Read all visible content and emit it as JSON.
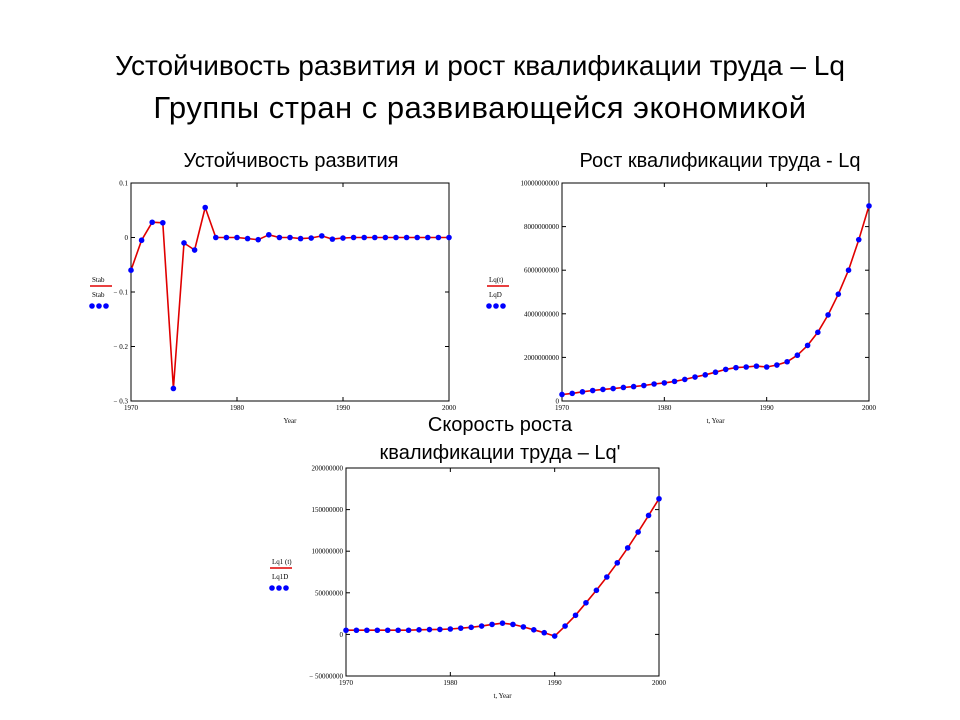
{
  "slide": {
    "title": "Устойчивость развития и рост квалификации труда – Lq",
    "subtitle": "Группы стран с развивающейся экономикой"
  },
  "colors": {
    "line": "#e00000",
    "marker": "#0000ff",
    "axis": "#000000"
  },
  "chart_data": [
    {
      "type": "line",
      "title": "Устойчивость развития",
      "xlabel": "Year",
      "ylabel": "",
      "xlim": [
        1970,
        2000
      ],
      "ylim": [
        -0.3,
        0.1
      ],
      "xticks": [
        1970,
        1980,
        1990,
        2000
      ],
      "xtick_labels": [
        "1970",
        "1980",
        "1990",
        "2000"
      ],
      "yticks": [
        0.1,
        0,
        -0.1,
        -0.2,
        -0.3
      ],
      "ytick_labels": [
        "0.1",
        "0",
        "− 0.1",
        "− 0.2",
        "− 0.3"
      ],
      "legend": [
        "Stab",
        "Stab"
      ],
      "legend_position": "left",
      "series": [
        {
          "name": "Stab",
          "style": "line",
          "x": [
            1970,
            1971,
            1972,
            1973,
            1974,
            1975,
            1976,
            1977,
            1978,
            1979,
            1980,
            1981,
            1982,
            1983,
            1984,
            1985,
            1986,
            1987,
            1988,
            1989,
            1990,
            1991,
            1992,
            1993,
            1994,
            1995,
            1996,
            1997,
            1998,
            1999,
            2000
          ],
          "y": [
            -0.06,
            -0.005,
            0.028,
            0.027,
            -0.277,
            -0.01,
            -0.023,
            0.055,
            0.0,
            0.0,
            0.0,
            -0.002,
            -0.004,
            0.005,
            0.0,
            0.0,
            -0.002,
            -0.001,
            0.003,
            -0.003,
            -0.001,
            0.0,
            0.0,
            0.0,
            0.0,
            0.0,
            0.0,
            0.0,
            0.0,
            0.0,
            0.0
          ]
        },
        {
          "name": "Stab",
          "style": "markers",
          "x": [
            1970,
            1971,
            1972,
            1973,
            1974,
            1975,
            1976,
            1977,
            1978,
            1979,
            1980,
            1981,
            1982,
            1983,
            1984,
            1985,
            1986,
            1987,
            1988,
            1989,
            1990,
            1991,
            1992,
            1993,
            1994,
            1995,
            1996,
            1997,
            1998,
            1999,
            2000
          ],
          "y": [
            -0.06,
            -0.005,
            0.028,
            0.027,
            -0.277,
            -0.01,
            -0.023,
            0.055,
            0.0,
            0.0,
            0.0,
            -0.002,
            -0.004,
            0.005,
            0.0,
            0.0,
            -0.002,
            -0.001,
            0.003,
            -0.003,
            -0.001,
            0.0,
            0.0,
            0.0,
            0.0,
            0.0,
            0.0,
            0.0,
            0.0,
            0.0,
            0.0
          ]
        }
      ]
    },
    {
      "type": "line",
      "title": "Рост квалификации труда - Lq",
      "xlabel": "t, Year",
      "ylabel": "",
      "xlim": [
        1970,
        2000
      ],
      "ylim": [
        0,
        10000000000
      ],
      "xticks": [
        1970,
        1980,
        1990,
        2000
      ],
      "xtick_labels": [
        "1970",
        "1980",
        "1990",
        "2000"
      ],
      "yticks": [
        10000000000,
        8000000000,
        6000000000,
        4000000000,
        2000000000,
        0
      ],
      "ytick_labels": [
        "10000000000",
        "8000000000",
        "6000000000",
        "4000000000",
        "2000000000",
        "0"
      ],
      "legend": [
        "Lq(t)",
        "LqD"
      ],
      "legend_position": "left",
      "series": [
        {
          "name": "Lq(t)",
          "style": "line",
          "x": [
            1970,
            1971,
            1972,
            1973,
            1974,
            1975,
            1976,
            1977,
            1978,
            1979,
            1980,
            1981,
            1982,
            1983,
            1984,
            1985,
            1986,
            1987,
            1988,
            1989,
            1990,
            1991,
            1992,
            1993,
            1994,
            1995,
            1996,
            1997,
            1998,
            1999,
            2000
          ],
          "y": [
            300000000,
            350000000,
            420000000,
            480000000,
            530000000,
            570000000,
            620000000,
            660000000,
            710000000,
            780000000,
            830000000,
            900000000,
            990000000,
            1100000000,
            1200000000,
            1320000000,
            1450000000,
            1530000000,
            1560000000,
            1600000000,
            1560000000,
            1650000000,
            1800000000,
            2100000000,
            2550000000,
            3150000000,
            3950000000,
            4900000000,
            6000000000,
            7400000000,
            8950000000
          ]
        },
        {
          "name": "LqD",
          "style": "markers",
          "x": [
            1970,
            1971,
            1972,
            1973,
            1974,
            1975,
            1976,
            1977,
            1978,
            1979,
            1980,
            1981,
            1982,
            1983,
            1984,
            1985,
            1986,
            1987,
            1988,
            1989,
            1990,
            1991,
            1992,
            1993,
            1994,
            1995,
            1996,
            1997,
            1998,
            1999,
            2000
          ],
          "y": [
            300000000,
            350000000,
            420000000,
            480000000,
            530000000,
            570000000,
            620000000,
            660000000,
            710000000,
            780000000,
            830000000,
            900000000,
            990000000,
            1100000000,
            1200000000,
            1320000000,
            1450000000,
            1530000000,
            1560000000,
            1600000000,
            1560000000,
            1650000000,
            1800000000,
            2100000000,
            2550000000,
            3150000000,
            3950000000,
            4900000000,
            6000000000,
            7400000000,
            8950000000
          ]
        }
      ]
    },
    {
      "type": "line",
      "title": "Скорость роста квалификации труда – Lq'",
      "title_lines": [
        "Скорость роста",
        "квалификации труда – Lq'"
      ],
      "xlabel": "t, Year",
      "ylabel": "",
      "xlim": [
        1970,
        2000
      ],
      "ylim": [
        -50000000,
        200000000
      ],
      "xticks": [
        1970,
        1980,
        1990,
        2000
      ],
      "xtick_labels": [
        "1970",
        "1980",
        "1990",
        "2000"
      ],
      "yticks": [
        200000000,
        150000000,
        100000000,
        50000000,
        0,
        -50000000
      ],
      "ytick_labels": [
        "200000000",
        "150000000",
        "100000000",
        "50000000",
        "0",
        "− 50000000"
      ],
      "legend": [
        "Lq1 (t)",
        "Lq1D"
      ],
      "legend_position": "left",
      "series": [
        {
          "name": "Lq1 (t)",
          "style": "line",
          "x": [
            1970,
            1971,
            1972,
            1973,
            1974,
            1975,
            1976,
            1977,
            1978,
            1979,
            1980,
            1981,
            1982,
            1983,
            1984,
            1985,
            1986,
            1987,
            1988,
            1989,
            1990,
            1991,
            1992,
            1993,
            1994,
            1995,
            1996,
            1997,
            1998,
            1999,
            2000
          ],
          "y": [
            5000000,
            5000000,
            5000000,
            5000000,
            5000000,
            5000000,
            5000000,
            5500000,
            5800000,
            6000000,
            6500000,
            7500000,
            8500000,
            10000000,
            12000000,
            13500000,
            12000000,
            9000000,
            5500000,
            2000000,
            -2000000,
            10000000,
            23000000,
            38000000,
            53000000,
            69000000,
            86000000,
            104000000,
            123000000,
            143000000,
            163000000
          ]
        },
        {
          "name": "Lq1D",
          "style": "markers",
          "x": [
            1970,
            1971,
            1972,
            1973,
            1974,
            1975,
            1976,
            1977,
            1978,
            1979,
            1980,
            1981,
            1982,
            1983,
            1984,
            1985,
            1986,
            1987,
            1988,
            1989,
            1990,
            1991,
            1992,
            1993,
            1994,
            1995,
            1996,
            1997,
            1998,
            1999,
            2000
          ],
          "y": [
            5000000,
            5000000,
            5000000,
            5000000,
            5000000,
            5000000,
            5000000,
            5500000,
            5800000,
            6000000,
            6500000,
            7500000,
            8500000,
            10000000,
            12000000,
            13500000,
            12000000,
            9000000,
            5500000,
            2000000,
            -2000000,
            10000000,
            23000000,
            38000000,
            53000000,
            69000000,
            86000000,
            104000000,
            123000000,
            143000000,
            163000000
          ]
        }
      ]
    }
  ]
}
